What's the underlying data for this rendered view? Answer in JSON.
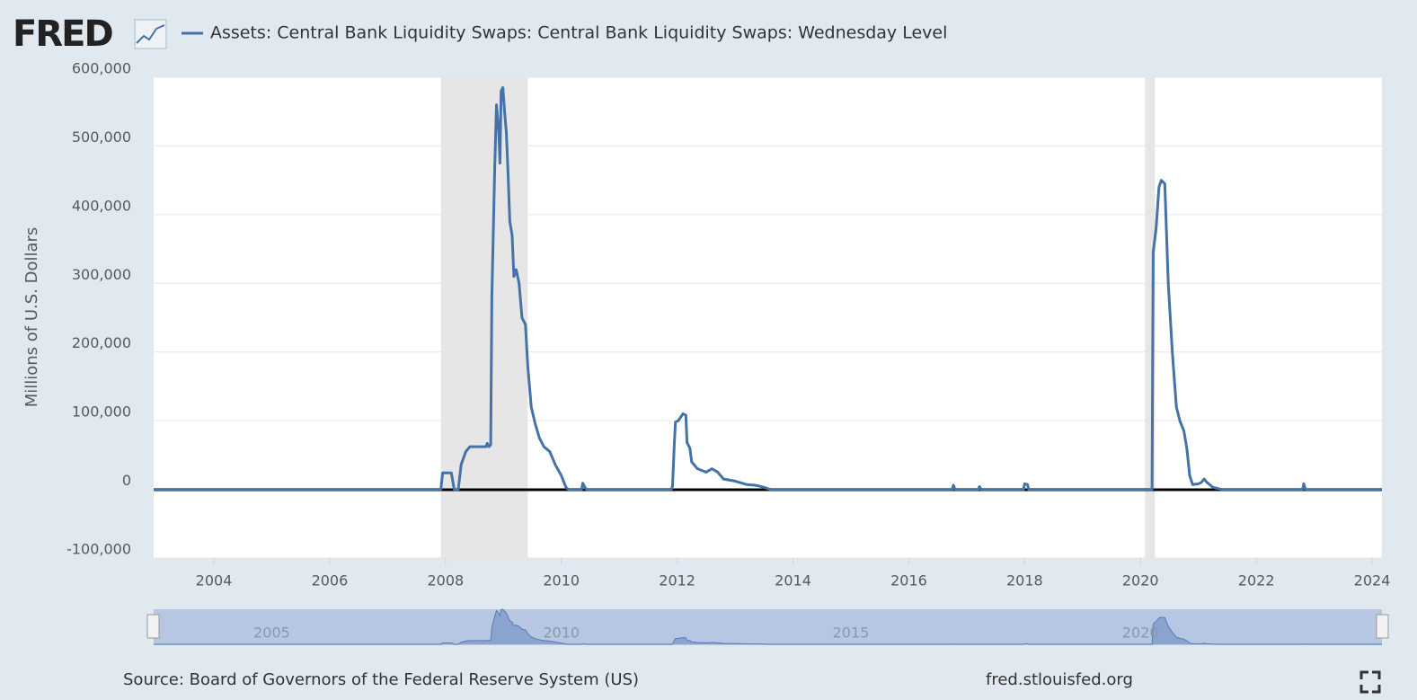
{
  "header": {
    "logo": "FRED"
  },
  "chart_data": {
    "type": "line",
    "y_label": "Millions of U.S. Dollars",
    "x": [
      2002.96,
      2007.92,
      2007.95,
      2008.1,
      2008.15,
      2008.22,
      2008.27,
      2008.35,
      2008.42,
      2008.7,
      2008.72,
      2008.75,
      2008.78,
      2008.8,
      2008.85,
      2008.88,
      2008.92,
      2008.94,
      2008.96,
      2008.99,
      2009.02,
      2009.05,
      2009.08,
      2009.11,
      2009.15,
      2009.18,
      2009.22,
      2009.27,
      2009.32,
      2009.38,
      2009.42,
      2009.48,
      2009.55,
      2009.62,
      2009.7,
      2009.8,
      2009.9,
      2010.0,
      2010.08,
      2010.12,
      2010.35,
      2010.37,
      2010.42,
      2010.45,
      2011.9,
      2011.92,
      2011.95,
      2011.97,
      2012.02,
      2012.1,
      2012.15,
      2012.17,
      2012.22,
      2012.25,
      2012.35,
      2012.5,
      2012.6,
      2012.7,
      2012.8,
      2013.0,
      2013.2,
      2013.35,
      2013.5,
      2013.6,
      2016.75,
      2016.77,
      2016.8,
      2017.2,
      2017.22,
      2017.25,
      2017.98,
      2018.0,
      2018.05,
      2018.07,
      2020.2,
      2020.22,
      2020.27,
      2020.32,
      2020.36,
      2020.42,
      2020.48,
      2020.55,
      2020.62,
      2020.68,
      2020.75,
      2020.8,
      2020.85,
      2020.9,
      2021.0,
      2021.05,
      2021.1,
      2021.15,
      2021.25,
      2021.4,
      2022.8,
      2022.82,
      2022.85,
      2024.17
    ],
    "series": [
      {
        "name": "Assets: Central Bank Liquidity Swaps: Central Bank Liquidity Swaps: Wednesday Level",
        "color": "#4572a7",
        "values": [
          0,
          0,
          24000,
          24000,
          0,
          0,
          36000,
          55000,
          62000,
          62000,
          67000,
          62000,
          65000,
          280000,
          470000,
          560000,
          520000,
          475000,
          580000,
          585000,
          550000,
          520000,
          460000,
          390000,
          370000,
          310000,
          320000,
          300000,
          250000,
          240000,
          180000,
          120000,
          95000,
          75000,
          62000,
          55000,
          35000,
          20000,
          3000,
          0,
          0,
          9000,
          1000,
          0,
          0,
          5000,
          65000,
          98000,
          100000,
          110000,
          108000,
          68000,
          60000,
          40000,
          30000,
          25000,
          30000,
          25000,
          15000,
          12000,
          7000,
          6000,
          3000,
          0,
          0,
          6000,
          0,
          0,
          4000,
          0,
          0,
          8000,
          7000,
          0,
          0,
          345000,
          380000,
          440000,
          450000,
          445000,
          300000,
          200000,
          120000,
          100000,
          85000,
          60000,
          20000,
          7000,
          8000,
          10000,
          15000,
          10000,
          3000,
          0,
          0,
          8000,
          0,
          0
        ]
      }
    ],
    "recessions": [
      [
        2007.92,
        2009.42
      ],
      [
        2020.08,
        2020.25
      ]
    ],
    "xlim": [
      2002.96,
      2024.17
    ],
    "xticks": [
      2004,
      2006,
      2008,
      2010,
      2012,
      2014,
      2016,
      2018,
      2020,
      2022,
      2024
    ],
    "ylim": [
      -100000,
      600000
    ],
    "yticks": [
      {
        "value": -100000,
        "label": "-100,000"
      },
      0,
      {
        "value": 100000,
        "label": "100,000"
      },
      {
        "value": 200000,
        "label": "200,000"
      },
      {
        "value": 300000,
        "label": "300,000"
      },
      {
        "value": 400000,
        "label": "400,000"
      },
      {
        "value": 500000,
        "label": "500,000"
      },
      {
        "value": 600000,
        "label": "600,000"
      }
    ],
    "grid": true,
    "navigator_ticks": [
      2005,
      2010,
      2015,
      2020
    ]
  },
  "footer": {
    "source": "Source: Board of Governors of the Federal Reserve System (US)",
    "site": "fred.stlouisfed.org"
  }
}
